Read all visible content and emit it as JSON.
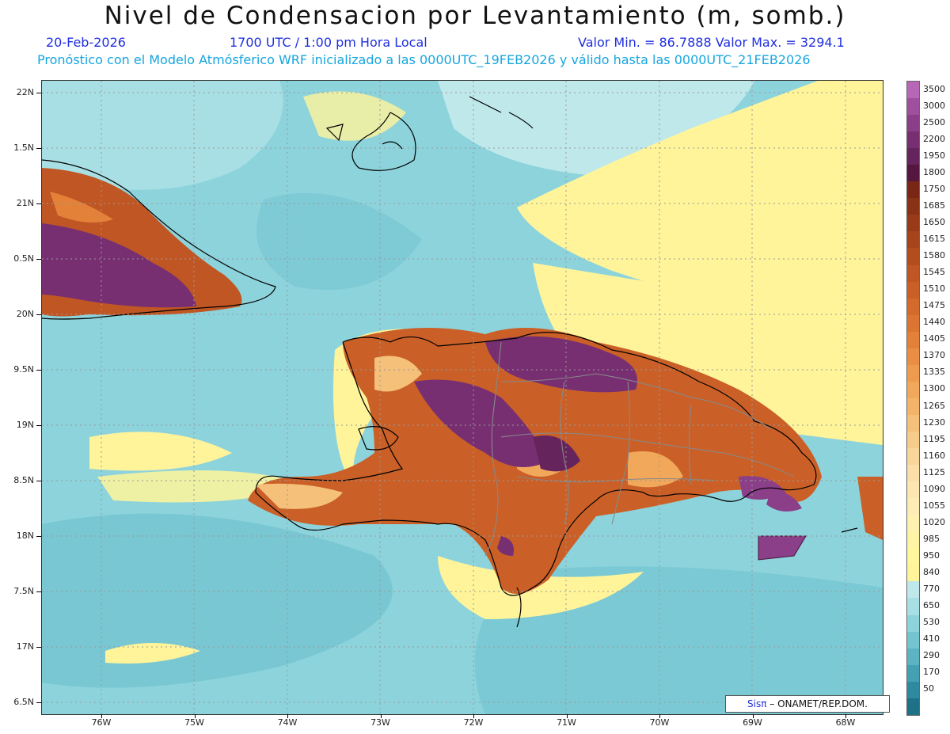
{
  "title": "Nivel de Condensacion por Levantamiento (m, somb.)",
  "date": "20-Feb-2026",
  "time": "1700 UTC / 1:00 pm Hora Local",
  "minmax": "Valor Min. = 86.7888  Valor Max. = 3294.1",
  "forecast": "Pronóstico con el Modelo Atmósferico WRF inicializado a las 0000UTC_19FEB2026 y válido hasta las  0000UTC_21FEB2026",
  "lat_labels": [
    "22N",
    "1.5N",
    "21N",
    "0.5N",
    "20N",
    "9.5N",
    "19N",
    "8.5N",
    "18N",
    "7.5N",
    "17N",
    "6.5N"
  ],
  "lon_labels": [
    "76W",
    "75W",
    "74W",
    "73W",
    "72W",
    "71W",
    "70W",
    "69W",
    "68W"
  ],
  "colorbar": [
    {
      "label": "3500",
      "color": "#b866b8"
    },
    {
      "label": "3000",
      "color": "#a04f9f"
    },
    {
      "label": "2500",
      "color": "#8a3f88"
    },
    {
      "label": "2200",
      "color": "#772f72"
    },
    {
      "label": "1950",
      "color": "#66245c"
    },
    {
      "label": "1800",
      "color": "#55163f"
    },
    {
      "label": "1750",
      "color": "#7a2614"
    },
    {
      "label": "1685",
      "color": "#8a3216"
    },
    {
      "label": "1650",
      "color": "#993b18"
    },
    {
      "label": "1615",
      "color": "#a6441b"
    },
    {
      "label": "1580",
      "color": "#b44d1e"
    },
    {
      "label": "1545",
      "color": "#c05623"
    },
    {
      "label": "1510",
      "color": "#ca6027"
    },
    {
      "label": "1475",
      "color": "#d46a2b"
    },
    {
      "label": "1440",
      "color": "#dd7532"
    },
    {
      "label": "1405",
      "color": "#e48139"
    },
    {
      "label": "1370",
      "color": "#ea8e43"
    },
    {
      "label": "1335",
      "color": "#ee9b4e"
    },
    {
      "label": "1300",
      "color": "#f1a85b"
    },
    {
      "label": "1265",
      "color": "#f3b46a"
    },
    {
      "label": "1230",
      "color": "#f5c07a"
    },
    {
      "label": "1195",
      "color": "#f7cb8a"
    },
    {
      "label": "1160",
      "color": "#f9d59a"
    },
    {
      "label": "1125",
      "color": "#fbdea8"
    },
    {
      "label": "1090",
      "color": "#fde6b2"
    },
    {
      "label": "1055",
      "color": "#feecb6"
    },
    {
      "label": "1020",
      "color": "#fff1b0"
    },
    {
      "label": "985",
      "color": "#fff4a6"
    },
    {
      "label": "950",
      "color": "#fff69e"
    },
    {
      "label": "840",
      "color": "#fff49a"
    },
    {
      "label": "770",
      "color": "#bfe8ea"
    },
    {
      "label": "650",
      "color": "#a8dfe4"
    },
    {
      "label": "530",
      "color": "#8dd3dc"
    },
    {
      "label": "410",
      "color": "#74c4d0"
    },
    {
      "label": "290",
      "color": "#5cb3c2"
    },
    {
      "label": "170",
      "color": "#44a1b3"
    },
    {
      "label": "50",
      "color": "#2e8aa0"
    },
    {
      "label": "",
      "color": "#1e7288"
    }
  ],
  "credit": {
    "logo": "Sisπ",
    "text": "– ONAMET/REP.DOM."
  }
}
